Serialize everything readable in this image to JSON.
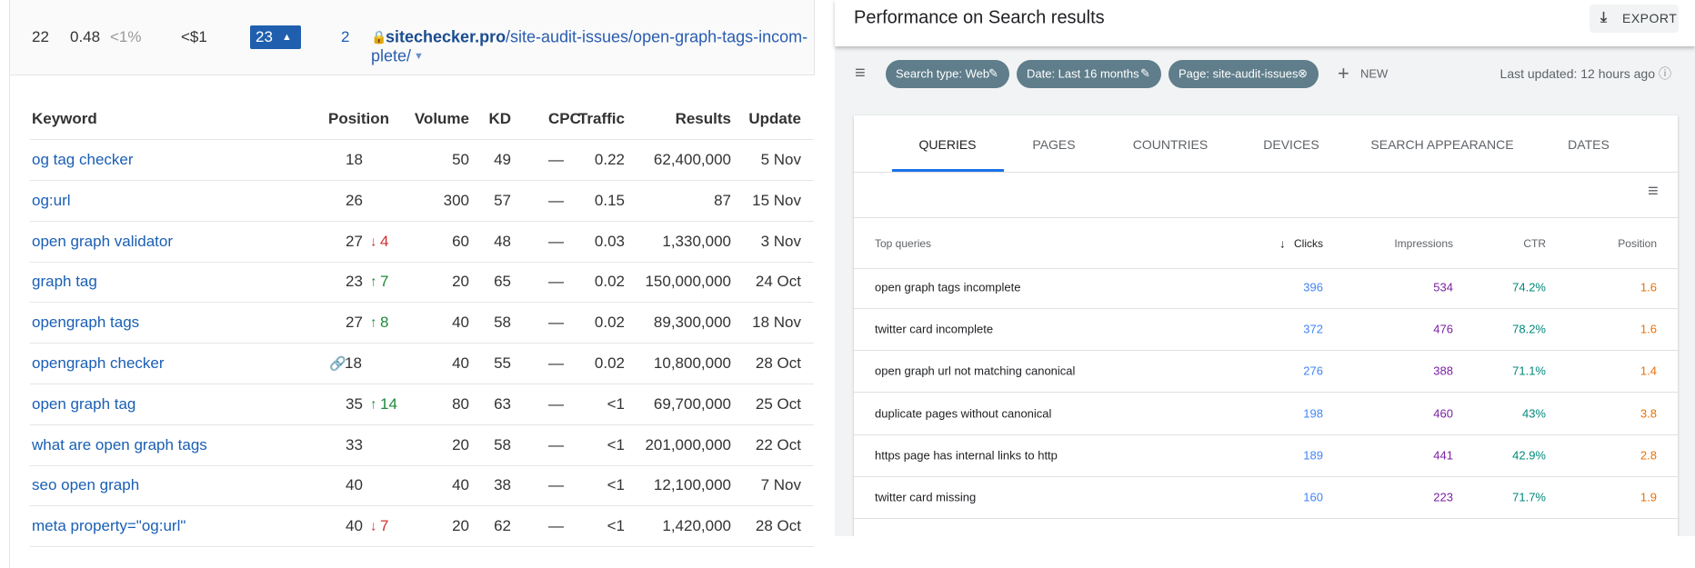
{
  "left": {
    "summary": [
      "22",
      "0.48",
      "<1%",
      "<$1",
      "23",
      "2"
    ],
    "url": {
      "domain": "sitechecker.pro",
      "path": [
        "/site-audit-issues/open-graph-tags-incom-",
        "plete/"
      ]
    },
    "table": {
      "headers": [
        "Keyword",
        "Position",
        "Volume",
        "KD",
        "CPC",
        "Traffic",
        "Results",
        "Update"
      ],
      "rows": [
        {
          "keyword": "og tag checker",
          "position": "18",
          "volume": "50",
          "kd": "49",
          "cpc": "—",
          "traffic": "0.22",
          "results": "62,400,000",
          "update": "5 Nov"
        },
        {
          "keyword": "og:url",
          "position": "26",
          "volume": "300",
          "kd": "57",
          "cpc": "—",
          "traffic": "0.15",
          "results": "87",
          "update": "15 Nov"
        },
        {
          "keyword": "open graph validator",
          "position": "27",
          "change": "4",
          "trend": "down",
          "volume": "60",
          "kd": "48",
          "cpc": "—",
          "traffic": "0.03",
          "results": "1,330,000",
          "update": "3 Nov"
        },
        {
          "keyword": "graph tag",
          "position": "23",
          "change": "7",
          "trend": "up",
          "volume": "20",
          "kd": "65",
          "cpc": "—",
          "traffic": "0.02",
          "results": "150,000,000",
          "update": "24 Oct"
        },
        {
          "keyword": "opengraph tags",
          "position": "27",
          "change": "8",
          "trend": "up",
          "volume": "40",
          "kd": "58",
          "cpc": "—",
          "traffic": "0.02",
          "results": "89,300,000",
          "update": "18 Nov"
        },
        {
          "keyword": "opengraph checker",
          "position": "18",
          "icon": "link",
          "volume": "40",
          "kd": "55",
          "cpc": "—",
          "traffic": "0.02",
          "results": "10,800,000",
          "update": "28 Oct"
        },
        {
          "keyword": "open graph tag",
          "position": "35",
          "change": "14",
          "trend": "up",
          "volume": "80",
          "kd": "63",
          "cpc": "—",
          "traffic": "<1",
          "results": "69,700,000",
          "update": "25 Oct"
        },
        {
          "keyword": "what are open graph tags",
          "position": "33",
          "volume": "20",
          "kd": "58",
          "cpc": "—",
          "traffic": "<1",
          "results": "201,000,000",
          "update": "22 Oct"
        },
        {
          "keyword": "seo open graph",
          "position": "40",
          "volume": "40",
          "kd": "38",
          "cpc": "—",
          "traffic": "<1",
          "results": "12,100,000",
          "update": "7 Nov"
        },
        {
          "keyword": "meta property=\"og:url\"",
          "position": "40",
          "change": "7",
          "trend": "down",
          "volume": "20",
          "kd": "62",
          "cpc": "—",
          "traffic": "<1",
          "results": "1,420,000",
          "update": "28 Oct"
        }
      ]
    }
  },
  "right": {
    "header": {
      "title": "Performance on Search results",
      "export": "EXPORT"
    },
    "filters": {
      "chips": [
        "Search type: Web",
        "Date: Last 16 months",
        "Page: site-audit-issues"
      ],
      "new": "NEW",
      "updated": "Last updated: 12 hours ago"
    },
    "tabs": [
      "QUERIES",
      "PAGES",
      "COUNTRIES",
      "DEVICES",
      "SEARCH APPEARANCE",
      "DATES"
    ],
    "table": {
      "headers": [
        "Top queries",
        "Clicks",
        "Impressions",
        "CTR",
        "Position"
      ],
      "rows": [
        [
          "open graph tags incomplete",
          "396",
          "534",
          "74.2%",
          "1.6"
        ],
        [
          "twitter card incomplete",
          "372",
          "476",
          "78.2%",
          "1.6"
        ],
        [
          "open graph url not matching canonical",
          "276",
          "388",
          "71.1%",
          "1.4"
        ],
        [
          "duplicate pages without canonical",
          "198",
          "460",
          "43%",
          "3.8"
        ],
        [
          "https page has internal links to http",
          "189",
          "441",
          "42.9%",
          "2.8"
        ],
        [
          "twitter card missing",
          "160",
          "223",
          "71.7%",
          "1.9"
        ]
      ]
    }
  }
}
